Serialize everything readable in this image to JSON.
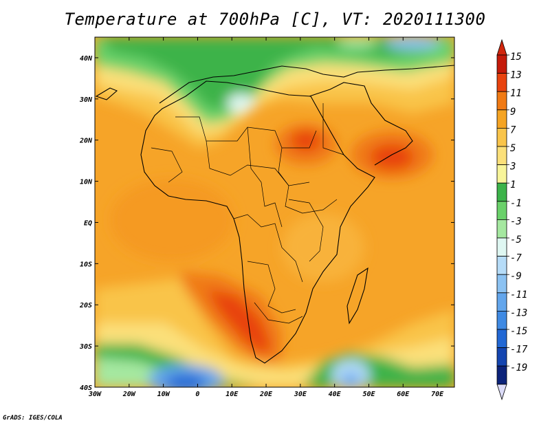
{
  "title": "Temperature at 700hPa [C], VT: 2020111300",
  "credit": "GrADS: IGES/COLA",
  "map": {
    "projection": "lat-lon",
    "lon_range": [
      -30,
      75
    ],
    "lat_range": [
      -40,
      45
    ],
    "lon_ticks": [
      {
        "value": -30,
        "label": "30W"
      },
      {
        "value": -20,
        "label": "20W"
      },
      {
        "value": -10,
        "label": "10W"
      },
      {
        "value": 0,
        "label": "0"
      },
      {
        "value": 10,
        "label": "10E"
      },
      {
        "value": 20,
        "label": "20E"
      },
      {
        "value": 30,
        "label": "30E"
      },
      {
        "value": 40,
        "label": "40E"
      },
      {
        "value": 50,
        "label": "50E"
      },
      {
        "value": 60,
        "label": "60E"
      },
      {
        "value": 70,
        "label": "70E"
      }
    ],
    "lat_ticks": [
      {
        "value": 40,
        "label": "40N"
      },
      {
        "value": 30,
        "label": "30N"
      },
      {
        "value": 20,
        "label": "20N"
      },
      {
        "value": 10,
        "label": "10N"
      },
      {
        "value": 0,
        "label": "EQ"
      },
      {
        "value": -10,
        "label": "10S"
      },
      {
        "value": -20,
        "label": "20S"
      },
      {
        "value": -30,
        "label": "30S"
      },
      {
        "value": -40,
        "label": "40S"
      }
    ]
  },
  "colorbar": {
    "labels": [
      "15",
      "13",
      "11",
      "9",
      "7",
      "5",
      "3",
      "1",
      "-1",
      "-3",
      "-5",
      "-7",
      "-9",
      "-11",
      "-13",
      "-15",
      "-17",
      "-19"
    ],
    "colors": [
      "#c41a0a",
      "#e8430f",
      "#f07a14",
      "#f5a423",
      "#f9c44a",
      "#fbe07a",
      "#f8f59a",
      "#3cb34a",
      "#6ad16a",
      "#a5e8a0",
      "#dff7f2",
      "#b6dcf8",
      "#8cc2f2",
      "#63a6ec",
      "#3f8ae3",
      "#2268d4",
      "#1445b0",
      "#0c237a"
    ],
    "top_color": "#d1260d",
    "bottom_color": "#dcdcf8"
  }
}
